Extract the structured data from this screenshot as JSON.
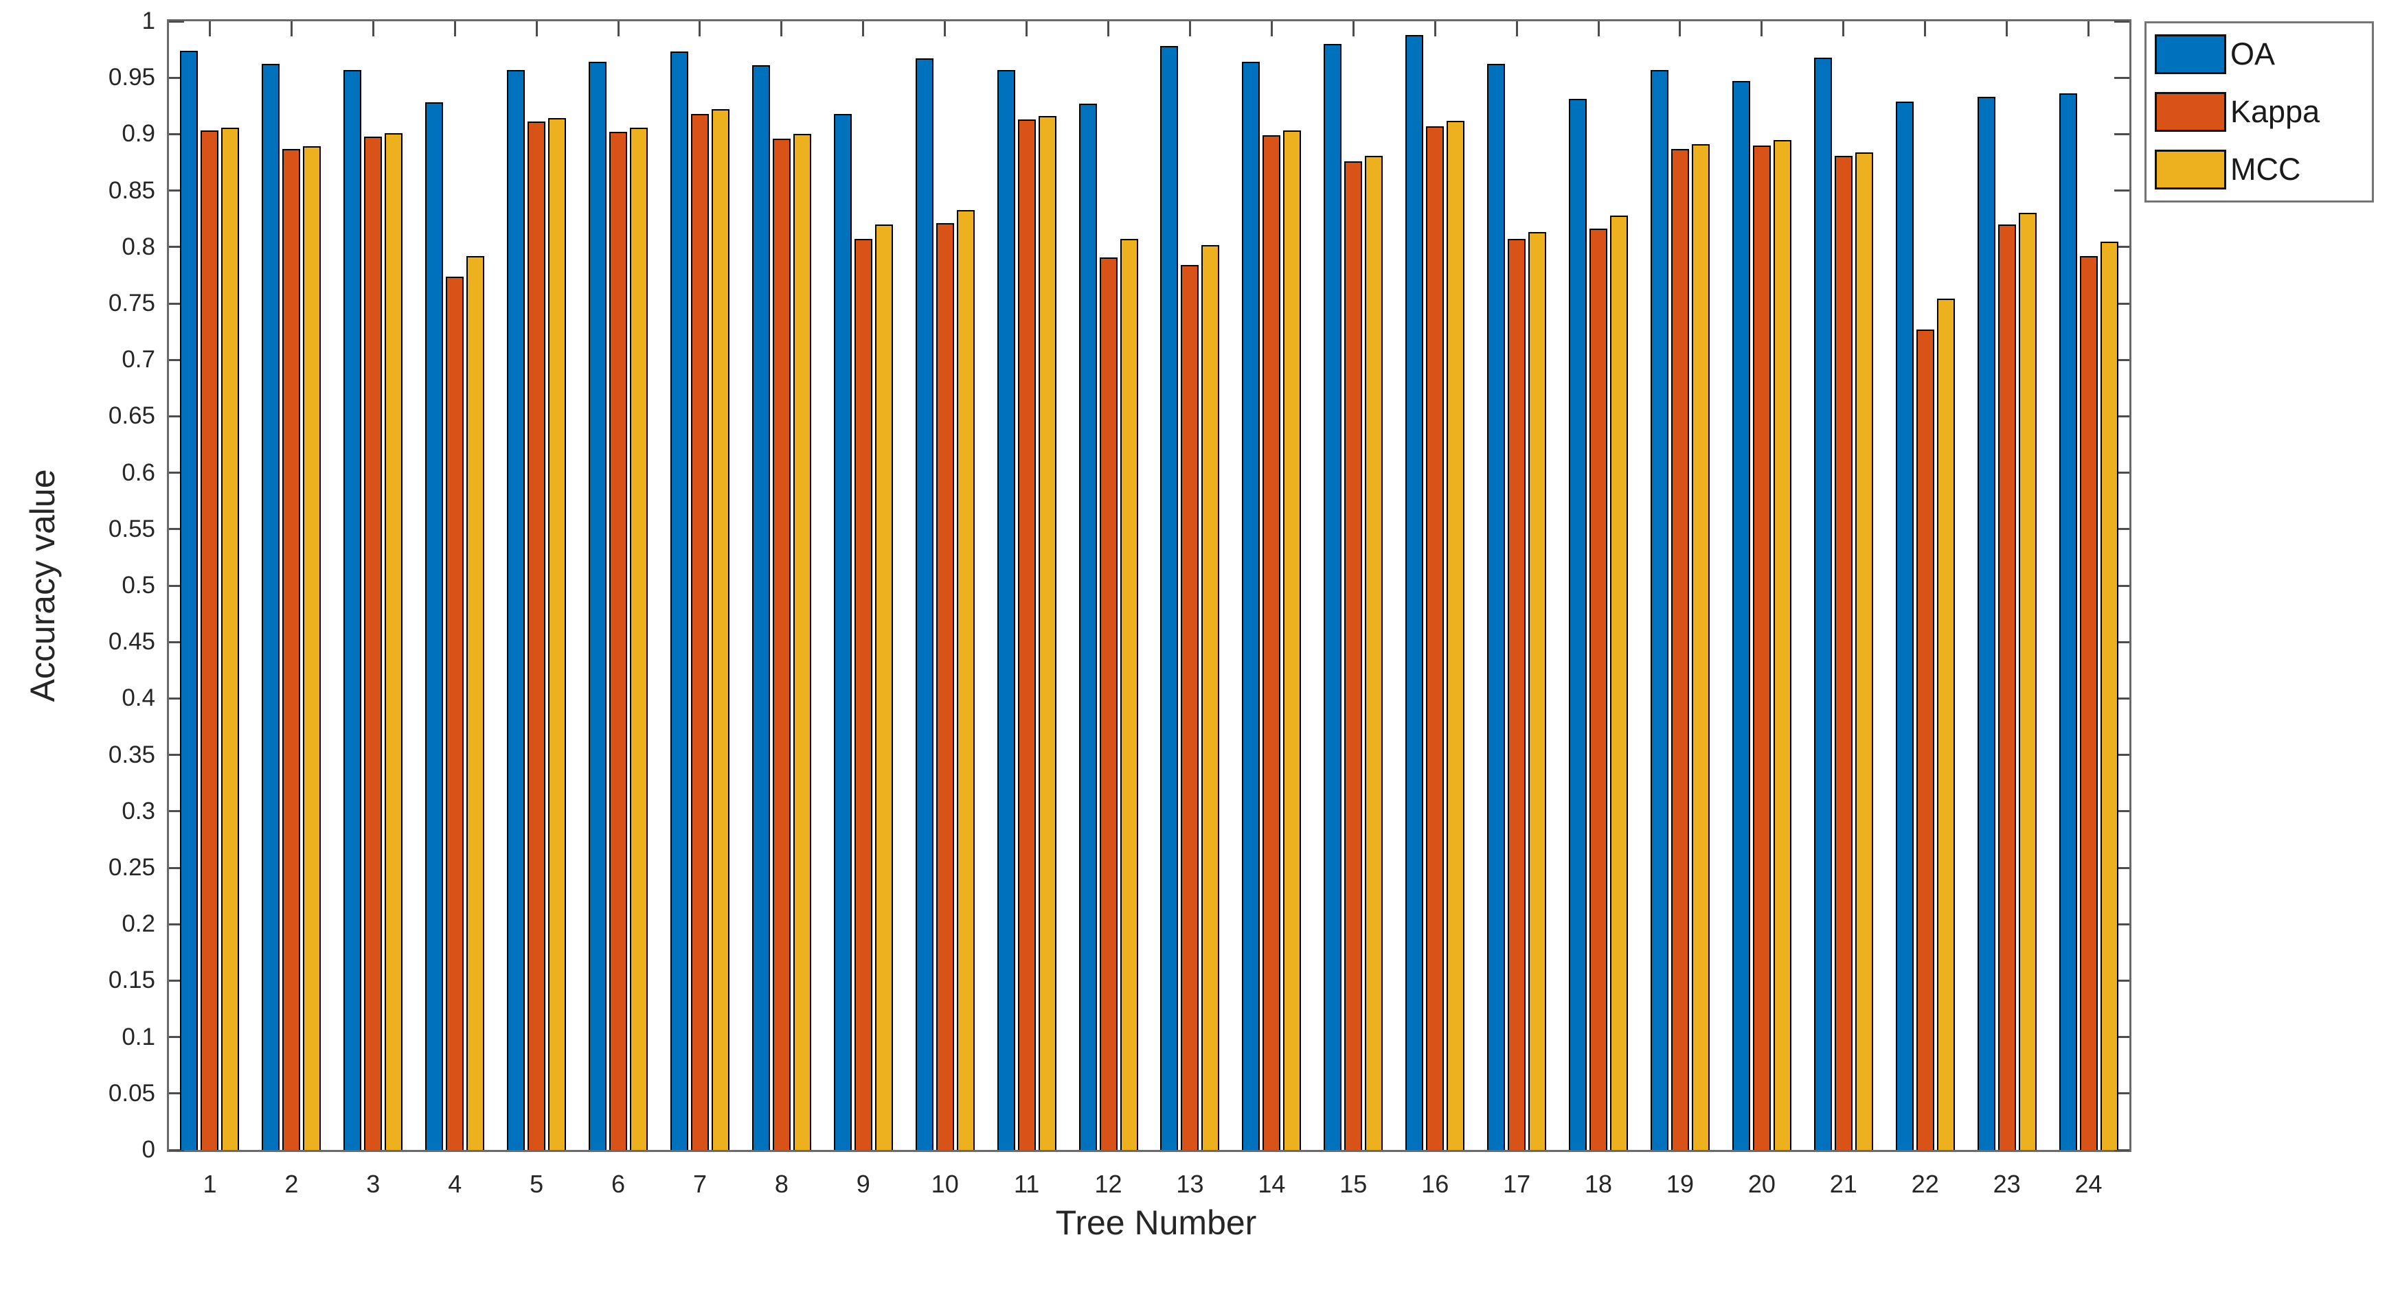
{
  "figure": {
    "background": "#ffffff",
    "axis_line_color": "#6a6a6a",
    "tick_color": "#4d4d4d",
    "text_color": "#262626"
  },
  "chart_data": {
    "type": "bar",
    "title": "",
    "xlabel": "Tree Number",
    "ylabel": "Accuracy value",
    "categories": [
      "1",
      "2",
      "3",
      "4",
      "5",
      "6",
      "7",
      "8",
      "9",
      "10",
      "11",
      "12",
      "13",
      "14",
      "15",
      "16",
      "17",
      "18",
      "19",
      "20",
      "21",
      "22",
      "23",
      "24"
    ],
    "series": [
      {
        "name": "OA",
        "color": "#0072BD",
        "values": [
          0.974,
          0.962,
          0.957,
          0.928,
          0.957,
          0.964,
          0.973,
          0.961,
          0.918,
          0.967,
          0.957,
          0.927,
          0.978,
          0.964,
          0.98,
          0.988,
          0.962,
          0.931,
          0.957,
          0.947,
          0.968,
          0.929,
          0.933,
          0.936
        ]
      },
      {
        "name": "Kappa",
        "color": "#D95319",
        "values": [
          0.903,
          0.887,
          0.898,
          0.774,
          0.911,
          0.902,
          0.918,
          0.896,
          0.807,
          0.821,
          0.913,
          0.791,
          0.784,
          0.899,
          0.876,
          0.907,
          0.807,
          0.816,
          0.887,
          0.89,
          0.881,
          0.727,
          0.82,
          0.792
        ]
      },
      {
        "name": "MCC",
        "color": "#EDB120",
        "values": [
          0.906,
          0.889,
          0.901,
          0.792,
          0.914,
          0.906,
          0.922,
          0.9,
          0.82,
          0.833,
          0.916,
          0.807,
          0.802,
          0.903,
          0.881,
          0.912,
          0.813,
          0.828,
          0.891,
          0.895,
          0.884,
          0.754,
          0.83,
          0.805
        ]
      }
    ],
    "ylim": [
      0,
      1
    ],
    "ytick_step": 0.05,
    "ytick_labels": [
      "0",
      "0.05",
      "0.1",
      "0.15",
      "0.2",
      "0.25",
      "0.3",
      "0.35",
      "0.4",
      "0.45",
      "0.5",
      "0.55",
      "0.6",
      "0.65",
      "0.7",
      "0.75",
      "0.8",
      "0.85",
      "0.9",
      "0.95",
      "1"
    ],
    "grid": false,
    "legend_position": "top-right",
    "bar_edge_color": "#000000"
  }
}
